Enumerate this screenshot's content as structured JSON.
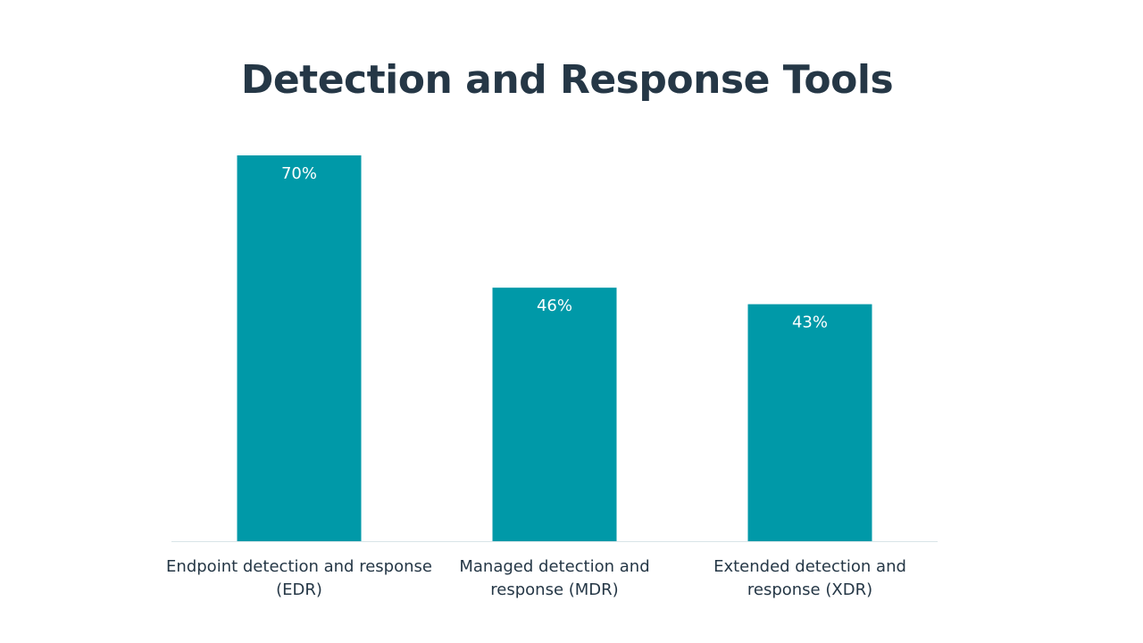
{
  "chart_data": {
    "type": "bar",
    "title": "Detection and Response Tools",
    "categories": [
      [
        "Endpoint detection and response",
        "(EDR)"
      ],
      [
        "Managed detection and",
        "response (MDR)"
      ],
      [
        "Extended detection and",
        "response (XDR)"
      ]
    ],
    "values": [
      70,
      46,
      43
    ],
    "data_labels": [
      "70%",
      "46%",
      "43%"
    ],
    "ylim": [
      0,
      100
    ],
    "grid": false,
    "legend": "none",
    "bar_color": "#0099A8",
    "axis_color": "#D9E5E8",
    "text_color": "#253746"
  }
}
